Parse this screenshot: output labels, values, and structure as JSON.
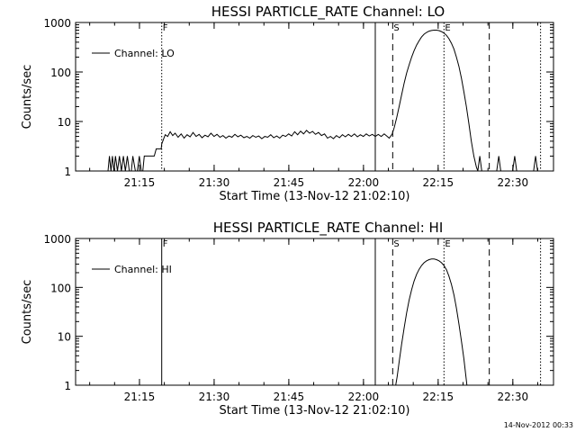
{
  "footer": {
    "timestamp": "14-Nov-2012 00:33"
  },
  "chart_data": [
    {
      "type": "line",
      "title": "HESSI PARTICLE_RATE Channel: LO",
      "xlabel": "Start Time (13-Nov-12 21:02:10)",
      "ylabel": "Counts/sec",
      "y_scale": "log",
      "xlim_min": [
        0,
        96
      ],
      "ylim": [
        1,
        1000
      ],
      "x_tick_labels": [
        "21:15",
        "21:30",
        "21:45",
        "22:00",
        "22:15",
        "22:30"
      ],
      "x_tick_values_min": [
        12.83,
        27.83,
        42.83,
        57.83,
        72.83,
        87.83
      ],
      "y_tick_labels": [
        "1",
        "10",
        "100",
        "1000"
      ],
      "y_tick_values": [
        1,
        10,
        100,
        1000
      ],
      "legend": {
        "label": "Channel: LO",
        "position": "top-left"
      },
      "markers": [
        {
          "label": "F",
          "x_min": 17.3,
          "style": "dotted"
        },
        {
          "label": "",
          "x_min": 60.2,
          "style": "solid"
        },
        {
          "label": "S",
          "x_min": 63.7,
          "style": "dashed"
        },
        {
          "label": "E",
          "x_min": 74.0,
          "style": "dotted"
        },
        {
          "label": "",
          "x_min": 83.1,
          "style": "dashed"
        },
        {
          "label": "",
          "x_min": 93.4,
          "style": "dotted"
        }
      ],
      "series": [
        {
          "values": [
            [
              6.5,
              1
            ],
            [
              6.8,
              2
            ],
            [
              7.1,
              1
            ],
            [
              7.4,
              2
            ],
            [
              7.7,
              1
            ],
            [
              8.0,
              2
            ],
            [
              8.4,
              1
            ],
            [
              8.8,
              2
            ],
            [
              9.2,
              1
            ],
            [
              9.6,
              2
            ],
            [
              10.0,
              1
            ],
            [
              10.4,
              2
            ],
            [
              10.8,
              1
            ],
            [
              11.2,
              1
            ],
            [
              11.5,
              2
            ],
            [
              12.0,
              1
            ],
            [
              12.4,
              1
            ],
            [
              12.8,
              2
            ],
            [
              13.2,
              1
            ],
            [
              13.5,
              1
            ],
            [
              13.8,
              2
            ],
            [
              14.5,
              2
            ],
            [
              15.2,
              2
            ],
            [
              15.8,
              2
            ],
            [
              16.2,
              2.8
            ],
            [
              16.7,
              2.8
            ],
            [
              17.2,
              2.8
            ],
            [
              17.3,
              3.5
            ],
            [
              17.7,
              4.5
            ],
            [
              18.0,
              5.4
            ],
            [
              18.5,
              5.0
            ],
            [
              19.0,
              6.2
            ],
            [
              19.5,
              5.2
            ],
            [
              20.0,
              5.8
            ],
            [
              20.6,
              4.8
            ],
            [
              21.2,
              5.6
            ],
            [
              21.8,
              4.6
            ],
            [
              22.4,
              5.4
            ],
            [
              23.0,
              4.9
            ],
            [
              23.6,
              6.0
            ],
            [
              24.2,
              5.0
            ],
            [
              24.8,
              5.5
            ],
            [
              25.4,
              4.7
            ],
            [
              26.0,
              5.3
            ],
            [
              26.6,
              4.9
            ],
            [
              27.2,
              5.8
            ],
            [
              27.8,
              5.0
            ],
            [
              28.4,
              5.5
            ],
            [
              29.0,
              4.8
            ],
            [
              29.6,
              5.2
            ],
            [
              30.2,
              4.6
            ],
            [
              30.8,
              5.1
            ],
            [
              31.4,
              4.8
            ],
            [
              32.0,
              5.5
            ],
            [
              32.6,
              4.9
            ],
            [
              33.2,
              5.3
            ],
            [
              33.8,
              4.7
            ],
            [
              34.4,
              5.0
            ],
            [
              35.0,
              4.6
            ],
            [
              35.6,
              5.2
            ],
            [
              36.2,
              4.8
            ],
            [
              36.8,
              5.1
            ],
            [
              37.4,
              4.5
            ],
            [
              38.0,
              5.0
            ],
            [
              38.6,
              4.8
            ],
            [
              39.2,
              5.4
            ],
            [
              39.8,
              4.7
            ],
            [
              40.4,
              5.1
            ],
            [
              41.0,
              4.6
            ],
            [
              41.6,
              5.3
            ],
            [
              42.2,
              5.0
            ],
            [
              42.8,
              5.6
            ],
            [
              43.4,
              5.1
            ],
            [
              44.0,
              6.2
            ],
            [
              44.6,
              5.4
            ],
            [
              45.2,
              6.4
            ],
            [
              45.8,
              5.6
            ],
            [
              46.4,
              6.6
            ],
            [
              47.0,
              5.8
            ],
            [
              47.6,
              6.3
            ],
            [
              48.2,
              5.5
            ],
            [
              48.8,
              6.0
            ],
            [
              49.4,
              5.2
            ],
            [
              50.0,
              5.6
            ],
            [
              50.6,
              4.6
            ],
            [
              51.2,
              5.0
            ],
            [
              51.8,
              4.5
            ],
            [
              52.4,
              5.2
            ],
            [
              53.0,
              4.7
            ],
            [
              53.6,
              5.4
            ],
            [
              54.2,
              4.9
            ],
            [
              54.8,
              5.5
            ],
            [
              55.4,
              5.0
            ],
            [
              56.0,
              5.6
            ],
            [
              56.6,
              4.9
            ],
            [
              57.2,
              5.4
            ],
            [
              57.8,
              5.0
            ],
            [
              58.4,
              5.6
            ],
            [
              59.0,
              5.1
            ],
            [
              59.6,
              5.5
            ],
            [
              60.2,
              5.0
            ],
            [
              60.8,
              5.5
            ],
            [
              61.4,
              5.0
            ],
            [
              62.0,
              5.6
            ],
            [
              62.6,
              5.0
            ],
            [
              63.0,
              4.6
            ],
            [
              63.6,
              5.6
            ],
            [
              64.0,
              7.5
            ],
            [
              64.5,
              12
            ],
            [
              65.0,
              20
            ],
            [
              65.5,
              35
            ],
            [
              66.0,
              60
            ],
            [
              66.5,
              95
            ],
            [
              67.0,
              140
            ],
            [
              67.5,
              200
            ],
            [
              68.0,
              270
            ],
            [
              68.5,
              350
            ],
            [
              69.0,
              430
            ],
            [
              69.5,
              510
            ],
            [
              70.0,
              580
            ],
            [
              70.5,
              630
            ],
            [
              71.0,
              670
            ],
            [
              71.5,
              690
            ],
            [
              72.0,
              700
            ],
            [
              72.5,
              700
            ],
            [
              73.0,
              685
            ],
            [
              73.5,
              655
            ],
            [
              74.0,
              610
            ],
            [
              74.5,
              550
            ],
            [
              75.0,
              470
            ],
            [
              75.5,
              380
            ],
            [
              76.0,
              290
            ],
            [
              76.5,
              200
            ],
            [
              77.0,
              130
            ],
            [
              77.5,
              75
            ],
            [
              78.0,
              40
            ],
            [
              78.5,
              20
            ],
            [
              79.0,
              9
            ],
            [
              79.5,
              4
            ],
            [
              80.0,
              2
            ],
            [
              80.5,
              1.2
            ],
            [
              80.8,
              1
            ],
            [
              81.2,
              2
            ],
            [
              81.6,
              1
            ],
            [
              84.6,
              1
            ],
            [
              85.0,
              2
            ],
            [
              85.4,
              1
            ],
            [
              87.8,
              1
            ],
            [
              88.2,
              2
            ],
            [
              88.6,
              1
            ],
            [
              92.0,
              1
            ],
            [
              92.4,
              2
            ],
            [
              92.8,
              1
            ]
          ]
        }
      ]
    },
    {
      "type": "line",
      "title": "HESSI PARTICLE_RATE Channel: HI",
      "xlabel": "Start Time (13-Nov-12 21:02:10)",
      "ylabel": "Counts/sec",
      "y_scale": "log",
      "xlim_min": [
        0,
        96
      ],
      "ylim": [
        1,
        1000
      ],
      "x_tick_labels": [
        "21:15",
        "21:30",
        "21:45",
        "22:00",
        "22:15",
        "22:30"
      ],
      "x_tick_values_min": [
        12.83,
        27.83,
        42.83,
        57.83,
        72.83,
        87.83
      ],
      "y_tick_labels": [
        "1",
        "10",
        "100",
        "1000"
      ],
      "y_tick_values": [
        1,
        10,
        100,
        1000
      ],
      "legend": {
        "label": "Channel: HI",
        "position": "top-left"
      },
      "markers": [
        {
          "label": "F",
          "x_min": 17.3,
          "style": "solid"
        },
        {
          "label": "",
          "x_min": 60.2,
          "style": "solid"
        },
        {
          "label": "S",
          "x_min": 63.7,
          "style": "dashed"
        },
        {
          "label": "E",
          "x_min": 74.0,
          "style": "dotted"
        },
        {
          "label": "",
          "x_min": 83.1,
          "style": "dashed"
        },
        {
          "label": "",
          "x_min": 93.4,
          "style": "dotted"
        }
      ],
      "series": [
        {
          "values": [
            [
              64.3,
              1
            ],
            [
              64.6,
              1.5
            ],
            [
              65.0,
              3
            ],
            [
              65.5,
              7
            ],
            [
              66.0,
              15
            ],
            [
              66.5,
              30
            ],
            [
              67.0,
              55
            ],
            [
              67.5,
              90
            ],
            [
              68.0,
              135
            ],
            [
              68.5,
              185
            ],
            [
              69.0,
              235
            ],
            [
              69.5,
              280
            ],
            [
              70.0,
              320
            ],
            [
              70.5,
              350
            ],
            [
              71.0,
              370
            ],
            [
              71.5,
              380
            ],
            [
              72.0,
              380
            ],
            [
              72.5,
              370
            ],
            [
              73.0,
              350
            ],
            [
              73.5,
              320
            ],
            [
              74.0,
              280
            ],
            [
              74.5,
              230
            ],
            [
              75.0,
              170
            ],
            [
              75.5,
              115
            ],
            [
              76.0,
              70
            ],
            [
              76.5,
              38
            ],
            [
              77.0,
              18
            ],
            [
              77.5,
              8
            ],
            [
              78.0,
              3.5
            ],
            [
              78.4,
              1.5
            ],
            [
              78.6,
              1
            ]
          ]
        }
      ]
    }
  ]
}
